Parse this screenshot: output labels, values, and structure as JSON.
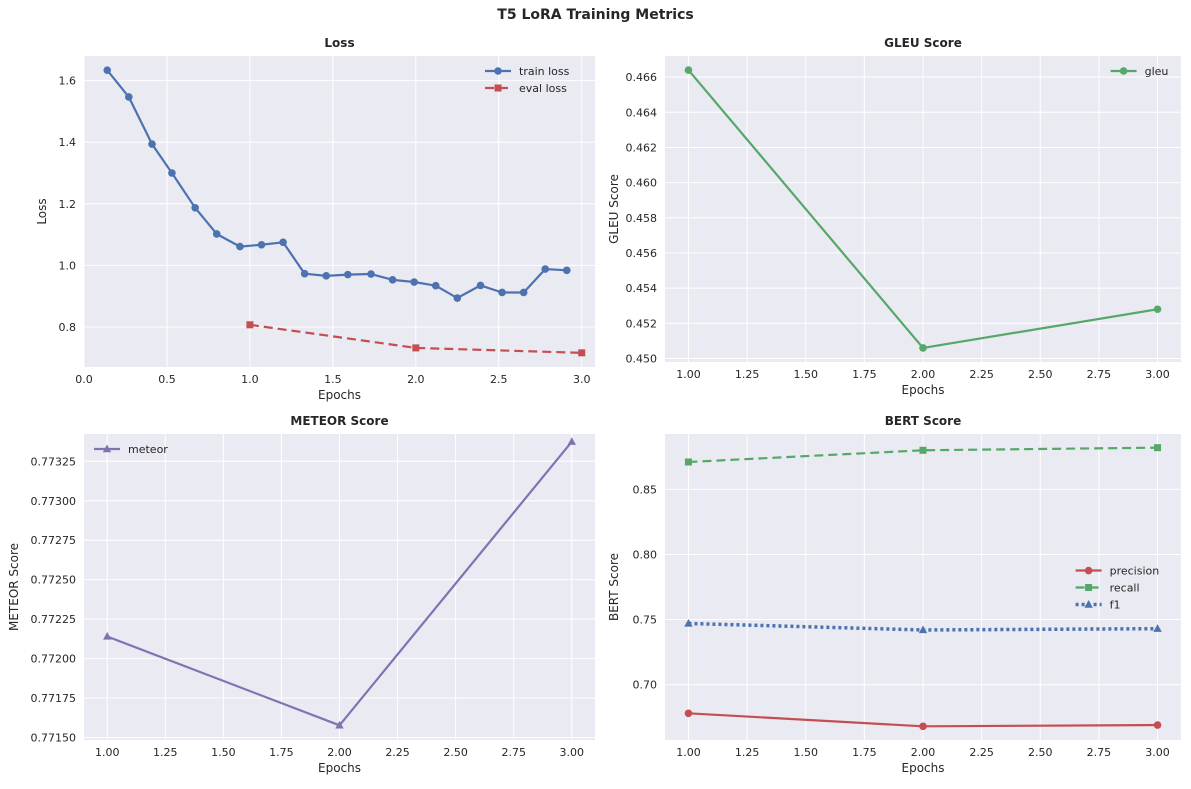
{
  "figure_title": "T5 LoRA Training Metrics",
  "colors": {
    "plot_bg": "#eaeaf2",
    "grid": "#ffffff",
    "blue": "#4c72b0",
    "red": "#c44e52",
    "green": "#55a868",
    "purple": "#8172b2"
  },
  "chart_data": [
    {
      "id": "loss",
      "type": "line",
      "title": "Loss",
      "xlabel": "Epochs",
      "ylabel": "Loss",
      "xlim": [
        0.0,
        3.08
      ],
      "ylim": [
        0.67,
        1.68
      ],
      "xticks": [
        0.0,
        0.5,
        1.0,
        1.5,
        2.0,
        2.5,
        3.0
      ],
      "xtick_labels": [
        "0.0",
        "0.5",
        "1.0",
        "1.5",
        "2.0",
        "2.5",
        "3.0"
      ],
      "yticks": [
        0.8,
        1.0,
        1.2,
        1.4,
        1.6
      ],
      "ytick_labels": [
        "0.8",
        "1.0",
        "1.2",
        "1.4",
        "1.6"
      ],
      "grid": true,
      "legend": "top-right",
      "series": [
        {
          "name": "train loss",
          "color": "#4c72b0",
          "dash": "solid",
          "marker": "circle",
          "x": [
            0.14,
            0.27,
            0.41,
            0.53,
            0.67,
            0.8,
            0.94,
            1.07,
            1.2,
            1.33,
            1.46,
            1.59,
            1.73,
            1.86,
            1.99,
            2.12,
            2.25,
            2.39,
            2.52,
            2.65,
            2.78,
            2.91
          ],
          "y": [
            1.634,
            1.547,
            1.394,
            1.3,
            1.187,
            1.102,
            1.061,
            1.067,
            1.075,
            0.973,
            0.966,
            0.97,
            0.972,
            0.953,
            0.946,
            0.934,
            0.894,
            0.935,
            0.912,
            0.912,
            0.988,
            0.984
          ]
        },
        {
          "name": "eval loss",
          "color": "#c44e52",
          "dash": "dashed",
          "marker": "square",
          "x": [
            1.0,
            2.0,
            3.0
          ],
          "y": [
            0.807,
            0.732,
            0.716
          ]
        }
      ]
    },
    {
      "id": "gleu",
      "type": "line",
      "title": "GLEU Score",
      "xlabel": "Epochs",
      "ylabel": "GLEU Score",
      "xlim": [
        0.9,
        3.1
      ],
      "ylim": [
        0.4498,
        0.4672
      ],
      "xticks": [
        1.0,
        1.25,
        1.5,
        1.75,
        2.0,
        2.25,
        2.5,
        2.75,
        3.0
      ],
      "xtick_labels": [
        "1.00",
        "1.25",
        "1.50",
        "1.75",
        "2.00",
        "2.25",
        "2.50",
        "2.75",
        "3.00"
      ],
      "yticks": [
        0.45,
        0.452,
        0.454,
        0.456,
        0.458,
        0.46,
        0.462,
        0.464,
        0.466
      ],
      "ytick_labels": [
        "0.450",
        "0.452",
        "0.454",
        "0.456",
        "0.458",
        "0.460",
        "0.462",
        "0.464",
        "0.466"
      ],
      "grid": true,
      "legend": "top-right",
      "series": [
        {
          "name": "gleu",
          "color": "#55a868",
          "dash": "solid",
          "marker": "circle",
          "x": [
            1.0,
            2.0,
            3.0
          ],
          "y": [
            0.4664,
            0.4506,
            0.4528
          ]
        }
      ]
    },
    {
      "id": "meteor",
      "type": "line",
      "title": "METEOR Score",
      "xlabel": "Epochs",
      "ylabel": "METEOR Score",
      "xlim": [
        0.9,
        3.1
      ],
      "ylim": [
        0.771484,
        0.773423
      ],
      "xticks": [
        1.0,
        1.25,
        1.5,
        1.75,
        2.0,
        2.25,
        2.5,
        2.75,
        3.0
      ],
      "xtick_labels": [
        "1.00",
        "1.25",
        "1.50",
        "1.75",
        "2.00",
        "2.25",
        "2.50",
        "2.75",
        "3.00"
      ],
      "yticks": [
        0.7715,
        0.77175,
        0.772,
        0.77225,
        0.7725,
        0.77275,
        0.773,
        0.77325
      ],
      "ytick_labels": [
        "0.77150",
        "0.77175",
        "0.77200",
        "0.77225",
        "0.77250",
        "0.77275",
        "0.77300",
        "0.77325"
      ],
      "grid": true,
      "legend": "top-left",
      "series": [
        {
          "name": "meteor",
          "color": "#8172b2",
          "dash": "solid",
          "marker": "triangle",
          "x": [
            1.0,
            2.0,
            3.0
          ],
          "y": [
            0.77214,
            0.771577,
            0.773374
          ]
        }
      ]
    },
    {
      "id": "bert",
      "type": "line",
      "title": "BERT Score",
      "xlabel": "Epochs",
      "ylabel": "BERT Score",
      "xlim": [
        0.9,
        3.1
      ],
      "ylim": [
        0.6575,
        0.8925
      ],
      "xticks": [
        1.0,
        1.25,
        1.5,
        1.75,
        2.0,
        2.25,
        2.5,
        2.75,
        3.0
      ],
      "xtick_labels": [
        "1.00",
        "1.25",
        "1.50",
        "1.75",
        "2.00",
        "2.25",
        "2.50",
        "2.75",
        "3.00"
      ],
      "yticks": [
        0.7,
        0.75,
        0.8,
        0.85
      ],
      "ytick_labels": [
        "0.70",
        "0.75",
        "0.80",
        "0.85"
      ],
      "grid": true,
      "legend": "center-right",
      "series": [
        {
          "name": "precision",
          "color": "#c44e52",
          "dash": "solid",
          "marker": "circle",
          "x": [
            1.0,
            2.0,
            3.0
          ],
          "y": [
            0.678,
            0.668,
            0.669
          ]
        },
        {
          "name": "recall",
          "color": "#55a868",
          "dash": "dashed",
          "marker": "square",
          "x": [
            1.0,
            2.0,
            3.0
          ],
          "y": [
            0.871,
            0.88,
            0.882
          ]
        },
        {
          "name": "f1",
          "color": "#4c72b0",
          "dash": "dotted",
          "marker": "triangle",
          "x": [
            1.0,
            2.0,
            3.0
          ],
          "y": [
            0.747,
            0.742,
            0.743
          ]
        }
      ]
    }
  ]
}
